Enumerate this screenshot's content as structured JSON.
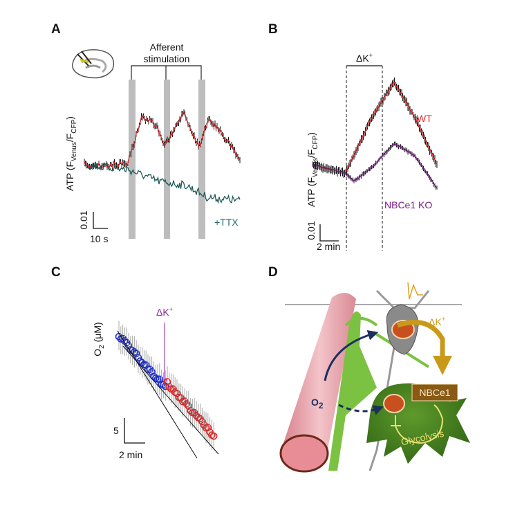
{
  "panels": [
    {
      "letter": "A",
      "stimulation_label": [
        "Afferent",
        "stimulation"
      ],
      "y_label": {
        "main": "ATP (F",
        "sub1": "Venus",
        "mid": "/F",
        "sub2": "CFP",
        "end": ")"
      },
      "scale_y": "0.01",
      "scale_x": "10 s",
      "trace_label": "+TTX"
    },
    {
      "letter": "B",
      "stimulus": {
        "main": "ΔK",
        "sup": "+"
      },
      "y_label": {
        "main": "ATP (F",
        "sub1": "Venus",
        "mid": "/F",
        "sub2": "CFP",
        "end": ")"
      },
      "scale_y": "0.01",
      "scale_x": "2 min",
      "wt_label": "WT",
      "ko_label": "NBCe1 KO"
    },
    {
      "letter": "C",
      "stimulus": {
        "main": "ΔK",
        "sup": "+"
      },
      "y_label": {
        "main": "O",
        "sub": "2",
        "end": " (μM)"
      },
      "scale_y": "5",
      "scale_x": "2 min"
    },
    {
      "letter": "D",
      "stimulus": {
        "main": "ΔK",
        "sup": "+"
      },
      "transporter": "NBCe1",
      "oxygen": {
        "main": "O",
        "sub": "2"
      },
      "pathway": "Glycolysis"
    }
  ]
}
